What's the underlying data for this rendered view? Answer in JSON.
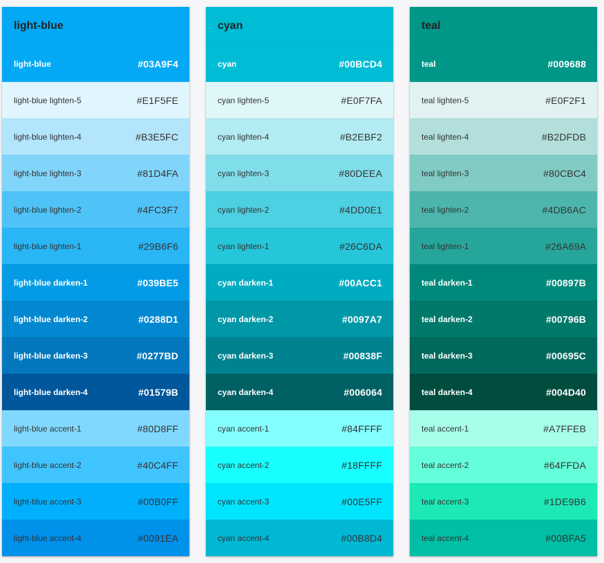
{
  "palettes": [
    {
      "title": "light-blue",
      "header_bg": "#03A9F4",
      "header_fg": "#222222",
      "rows": [
        {
          "name": "light-blue",
          "hex": "#03A9F4",
          "bg": "#03A9F4",
          "fg": "#ffffff",
          "bold": true
        },
        {
          "name": "light-blue lighten-5",
          "hex": "#E1F5FE",
          "bg": "#E1F5FE",
          "fg": "#333333",
          "bold": false
        },
        {
          "name": "light-blue lighten-4",
          "hex": "#B3E5FC",
          "bg": "#B3E5FC",
          "fg": "#333333",
          "bold": false
        },
        {
          "name": "light-blue lighten-3",
          "hex": "#81D4FA",
          "bg": "#81D4FA",
          "fg": "#333333",
          "bold": false
        },
        {
          "name": "light-blue lighten-2",
          "hex": "#4FC3F7",
          "bg": "#4FC3F7",
          "fg": "#333333",
          "bold": false
        },
        {
          "name": "light-blue lighten-1",
          "hex": "#29B6F6",
          "bg": "#29B6F6",
          "fg": "#333333",
          "bold": false
        },
        {
          "name": "light-blue darken-1",
          "hex": "#039BE5",
          "bg": "#039BE5",
          "fg": "#ffffff",
          "bold": true
        },
        {
          "name": "light-blue darken-2",
          "hex": "#0288D1",
          "bg": "#0288D1",
          "fg": "#ffffff",
          "bold": true
        },
        {
          "name": "light-blue darken-3",
          "hex": "#0277BD",
          "bg": "#0277BD",
          "fg": "#ffffff",
          "bold": true
        },
        {
          "name": "light-blue darken-4",
          "hex": "#01579B",
          "bg": "#01579B",
          "fg": "#ffffff",
          "bold": true
        },
        {
          "name": "light-blue accent-1",
          "hex": "#80D8FF",
          "bg": "#80D8FF",
          "fg": "#333333",
          "bold": false
        },
        {
          "name": "light-blue accent-2",
          "hex": "#40C4FF",
          "bg": "#40C4FF",
          "fg": "#333333",
          "bold": false
        },
        {
          "name": "light-blue accent-3",
          "hex": "#00B0FF",
          "bg": "#00B0FF",
          "fg": "#333333",
          "bold": false
        },
        {
          "name": "light-blue accent-4",
          "hex": "#0091EA",
          "bg": "#0091EA",
          "fg": "#333333",
          "bold": false
        }
      ]
    },
    {
      "title": "cyan",
      "header_bg": "#00BCD4",
      "header_fg": "#222222",
      "rows": [
        {
          "name": "cyan",
          "hex": "#00BCD4",
          "bg": "#00BCD4",
          "fg": "#ffffff",
          "bold": true
        },
        {
          "name": "cyan lighten-5",
          "hex": "#E0F7FA",
          "bg": "#E0F7FA",
          "fg": "#333333",
          "bold": false
        },
        {
          "name": "cyan lighten-4",
          "hex": "#B2EBF2",
          "bg": "#B2EBF2",
          "fg": "#333333",
          "bold": false
        },
        {
          "name": "cyan lighten-3",
          "hex": "#80DEEA",
          "bg": "#80DEEA",
          "fg": "#333333",
          "bold": false
        },
        {
          "name": "cyan lighten-2",
          "hex": "#4DD0E1",
          "bg": "#4DD0E1",
          "fg": "#333333",
          "bold": false
        },
        {
          "name": "cyan lighten-1",
          "hex": "#26C6DA",
          "bg": "#26C6DA",
          "fg": "#333333",
          "bold": false
        },
        {
          "name": "cyan darken-1",
          "hex": "#00ACC1",
          "bg": "#00ACC1",
          "fg": "#ffffff",
          "bold": true
        },
        {
          "name": "cyan darken-2",
          "hex": "#0097A7",
          "bg": "#0097A7",
          "fg": "#ffffff",
          "bold": true
        },
        {
          "name": "cyan darken-3",
          "hex": "#00838F",
          "bg": "#00838F",
          "fg": "#ffffff",
          "bold": true
        },
        {
          "name": "cyan darken-4",
          "hex": "#006064",
          "bg": "#006064",
          "fg": "#ffffff",
          "bold": true
        },
        {
          "name": "cyan accent-1",
          "hex": "#84FFFF",
          "bg": "#84FFFF",
          "fg": "#333333",
          "bold": false
        },
        {
          "name": "cyan accent-2",
          "hex": "#18FFFF",
          "bg": "#18FFFF",
          "fg": "#333333",
          "bold": false
        },
        {
          "name": "cyan accent-3",
          "hex": "#00E5FF",
          "bg": "#00E5FF",
          "fg": "#333333",
          "bold": false
        },
        {
          "name": "cyan accent-4",
          "hex": "#00B8D4",
          "bg": "#00B8D4",
          "fg": "#333333",
          "bold": false
        }
      ]
    },
    {
      "title": "teal",
      "header_bg": "#009688",
      "header_fg": "#222222",
      "rows": [
        {
          "name": "teal",
          "hex": "#009688",
          "bg": "#009688",
          "fg": "#ffffff",
          "bold": true
        },
        {
          "name": "teal lighten-5",
          "hex": "#E0F2F1",
          "bg": "#E0F2F1",
          "fg": "#333333",
          "bold": false
        },
        {
          "name": "teal lighten-4",
          "hex": "#B2DFDB",
          "bg": "#B2DFDB",
          "fg": "#333333",
          "bold": false
        },
        {
          "name": "teal lighten-3",
          "hex": "#80CBC4",
          "bg": "#80CBC4",
          "fg": "#333333",
          "bold": false
        },
        {
          "name": "teal lighten-2",
          "hex": "#4DB6AC",
          "bg": "#4DB6AC",
          "fg": "#333333",
          "bold": false
        },
        {
          "name": "teal lighten-1",
          "hex": "#26A69A",
          "bg": "#26A69A",
          "fg": "#333333",
          "bold": false
        },
        {
          "name": "teal darken-1",
          "hex": "#00897B",
          "bg": "#00897B",
          "fg": "#ffffff",
          "bold": true
        },
        {
          "name": "teal darken-2",
          "hex": "#00796B",
          "bg": "#00796B",
          "fg": "#ffffff",
          "bold": true
        },
        {
          "name": "teal darken-3",
          "hex": "#00695C",
          "bg": "#00695C",
          "fg": "#ffffff",
          "bold": true
        },
        {
          "name": "teal darken-4",
          "hex": "#004D40",
          "bg": "#004D40",
          "fg": "#ffffff",
          "bold": true
        },
        {
          "name": "teal accent-1",
          "hex": "#A7FFEB",
          "bg": "#A7FFEB",
          "fg": "#333333",
          "bold": false
        },
        {
          "name": "teal accent-2",
          "hex": "#64FFDA",
          "bg": "#64FFDA",
          "fg": "#333333",
          "bold": false
        },
        {
          "name": "teal accent-3",
          "hex": "#1DE9B6",
          "bg": "#1DE9B6",
          "fg": "#333333",
          "bold": false
        },
        {
          "name": "teal accent-4",
          "hex": "#00BFA5",
          "bg": "#00BFA5",
          "fg": "#333333",
          "bold": false
        }
      ]
    }
  ]
}
